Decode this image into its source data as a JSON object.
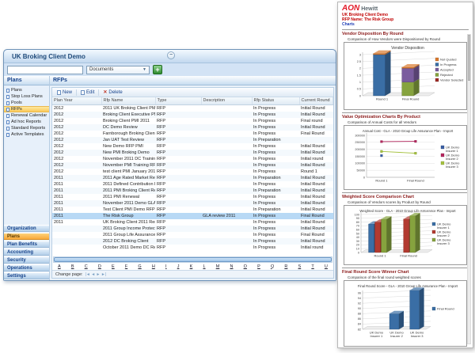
{
  "window": {
    "title": "UK Broking Client Demo",
    "minimize_glyph": "−",
    "search_input": {
      "value": "",
      "placeholder": ""
    },
    "documents_dropdown": {
      "value": "Documents"
    },
    "go_button_glyph": "+",
    "sidebar": {
      "header": "Plans",
      "items": [
        {
          "label": "Plans"
        },
        {
          "label": "Stop Loss Plans"
        },
        {
          "label": "Pools"
        },
        {
          "label": "RFPs",
          "selected": true
        },
        {
          "label": "Renewal Calendar"
        },
        {
          "label": "Ad hoc Reports"
        },
        {
          "label": "Standard Reports"
        },
        {
          "label": "Active Templates"
        }
      ],
      "accordion": [
        {
          "label": "Organization"
        },
        {
          "label": "Plans",
          "selected": true
        },
        {
          "label": "Plan Benefits"
        },
        {
          "label": "Accounting"
        },
        {
          "label": "Security"
        },
        {
          "label": "Operations"
        },
        {
          "label": "Settings"
        }
      ]
    },
    "content": {
      "header": "RFPs",
      "toolbar": {
        "new_label": "New",
        "edit_label": "Edit",
        "delete_label": "Delete"
      },
      "table": {
        "columns": [
          "Plan Year",
          "Rfp Name",
          "Type",
          "Description",
          "Rfp Status",
          "Current Round"
        ],
        "selected_row_index": 17,
        "rows": [
          [
            "2012",
            "2011 UK Broking Client PMI",
            "RFP",
            "",
            "In Progress",
            "Initial Round"
          ],
          [
            "2012",
            "Broking Client Executive PMI",
            "RFP",
            "",
            "In Progress",
            "Initial Round"
          ],
          [
            "2012",
            "Broking Client PMI 2011",
            "RFP",
            "",
            "In Progress",
            "Final round"
          ],
          [
            "2012",
            "DC Demo Review",
            "RFP",
            "",
            "In Progress",
            "Initial Round"
          ],
          [
            "2012",
            "Farnborough Broking Client GLA R...",
            "RFP",
            "",
            "In Progress",
            "Final Round"
          ],
          [
            "2012",
            "Jan UAT Test Review",
            "RFP",
            "",
            "In Preparation",
            ""
          ],
          [
            "2012",
            "New Demo RFP PMI",
            "RFP",
            "",
            "In Progress",
            "Initial Round"
          ],
          [
            "2012",
            "New PMI Broking Demo",
            "RFP",
            "",
            "In Progress",
            "Initial Round"
          ],
          [
            "2012",
            "November 2011 DC Training RFP",
            "RFP",
            "",
            "In Progress",
            "Initial round"
          ],
          [
            "2012",
            "November PMI Training RFP",
            "RFP",
            "",
            "In Progress",
            "Initial Round"
          ],
          [
            "2012",
            "test client PMI January 2012",
            "RFP",
            "",
            "In Progress",
            "Round 1"
          ],
          [
            "2011",
            "2011 Age Rated Market Review",
            "RFP",
            "",
            "In Preparation",
            "Initial Round"
          ],
          [
            "2011",
            "2011 Defined Contribution Pension",
            "RFP",
            "",
            "In Progress",
            "Initial Round"
          ],
          [
            "2011",
            "2011 PMI Broking Client Review",
            "RFP",
            "",
            "In Preparation",
            "Initial Round"
          ],
          [
            "2011",
            "2011 PMI Renewal",
            "RFP",
            "",
            "In Progress",
            "Initial Round"
          ],
          [
            "2011",
            "November 2011 Demo GLA review",
            "RFP",
            "",
            "In Progress",
            "Initial Round"
          ],
          [
            "2011",
            "Test Client PMI Demo RFP",
            "RFP",
            "",
            "In Preparation",
            "Initial Round"
          ],
          [
            "2011",
            "The Risk Group",
            "RFP",
            "GLA review 2011",
            "In Progress",
            "Final Round"
          ],
          [
            "2011",
            "UK Broking Client 2011 Renewal",
            "RFP",
            "",
            "In Progress",
            "Initial Round"
          ],
          [
            "",
            "2011 Group Income Protection Rev...",
            "RFP",
            "",
            "In Progress",
            "Initial Round"
          ],
          [
            "",
            "2011 Group Life Assurance Review",
            "RFP",
            "",
            "In Progress",
            "Final Round"
          ],
          [
            "",
            "2012 DC Broking Client",
            "RFP",
            "",
            "In Progress",
            "Initial Round"
          ],
          [
            "",
            "October 2011 Demo DC Review",
            "RFP",
            "",
            "In Progress",
            "Initial round"
          ]
        ]
      },
      "alphabet": [
        "A",
        "B",
        "C",
        "D",
        "E",
        "F",
        "G",
        "H",
        "I",
        "J",
        "K",
        "L",
        "M",
        "N",
        "O",
        "P",
        "Q",
        "R",
        "S",
        "T",
        "U"
      ],
      "pager": {
        "label": "Change page:",
        "buttons": [
          "|◄",
          "◄",
          "►",
          "►|"
        ]
      }
    }
  },
  "charts_panel": {
    "logo": {
      "brand": "AON",
      "sub": "Hewitt"
    },
    "client_line": "UK Broking Client Demo",
    "rfp_line": "RFP Name: The Risk Group",
    "charts_line": "Charts"
  },
  "chart_data": [
    {
      "type": "bar",
      "variant": "stacked3d",
      "section_title": "Vendor Disposition By Round",
      "section_subtitle": "Comparison of How Vendors were Dispositioned by Round",
      "title": "Vendor Disposition",
      "categories": [
        "Round 1",
        "Final Round"
      ],
      "series": [
        {
          "name": "Not Quoted",
          "color": "#D9782D",
          "values": [
            0.08,
            0.08
          ]
        },
        {
          "name": "In Progress",
          "color": "#3A6EA5",
          "values": [
            3,
            0
          ]
        },
        {
          "name": "Accepted",
          "color": "#7A5C9E",
          "values": [
            0,
            1
          ]
        },
        {
          "name": "Rejected",
          "color": "#86A33E",
          "values": [
            0,
            1
          ]
        },
        {
          "name": "Vendor Selected",
          "color": "#9E2B25",
          "values": [
            0,
            0
          ]
        }
      ],
      "ylim": [
        0,
        3
      ],
      "ytick": 0.5,
      "legend_position": "right",
      "grid": true
    },
    {
      "type": "line",
      "section_title": "Value Optimization Charts By Product",
      "section_subtitle": "Comparison of Annual Costs for all Vendors",
      "title": "Annual Cost - GLA - 2010 Group Life Assurance Plan - Import",
      "x": [
        "Round 1",
        "Final Round"
      ],
      "series": [
        {
          "name": "UK Demo Insurer 1",
          "color": "#3A5FA5",
          "values": [
            155000,
            null
          ]
        },
        {
          "name": "UK Demo Insurer 2",
          "color": "#B5275E",
          "values": [
            255000,
            257000
          ]
        },
        {
          "name": "UK Demo Insurer 3",
          "color": "#A6C23F",
          "values": [
            185000,
            172000
          ]
        }
      ],
      "ylim": [
        0,
        300000
      ],
      "ytick": 50000,
      "legend_position": "right",
      "grid": true
    },
    {
      "type": "bar",
      "variant": "grouped3d",
      "section_title": "Weighted Score Comparison Chart",
      "section_subtitle": "Comparison of Vendors scores by Product by Round",
      "title": "Weighted Score - GLA - 2010 Group Life Assurance Plan - Import",
      "categories": [
        "Round 1",
        "Final Round"
      ],
      "series": [
        {
          "name": "UK Demo Insurer 1",
          "color": "#3A6EA5",
          "values": [
            75,
            null
          ]
        },
        {
          "name": "UK Demo Insurer 2",
          "color": "#B23A30",
          "values": [
            80,
            88
          ]
        },
        {
          "name": "UK Demo Insurer 3",
          "color": "#86A33E",
          "values": [
            88,
            97
          ]
        }
      ],
      "ylim": [
        0,
        100
      ],
      "ytick": 10,
      "legend_position": "right",
      "grid": true
    },
    {
      "type": "bar",
      "variant": "grouped3d",
      "section_title": "Final Round Score Winner Chart",
      "section_subtitle": "Comparison of the final round weighted scores",
      "title": "Final Round Score - GLA - 2010 Group Life Assurance Plan - Import",
      "categories": [
        "UK Demo Insurer 1",
        "UK Demo Insurer 2",
        "UK Demo Insurer 3"
      ],
      "series": [
        {
          "name": "Final Round",
          "color": "#3A6EA5",
          "values": [
            null,
            88,
            97
          ]
        }
      ],
      "ylim": [
        82,
        96
      ],
      "ytick": 2,
      "legend_position": "right",
      "grid": true
    }
  ]
}
